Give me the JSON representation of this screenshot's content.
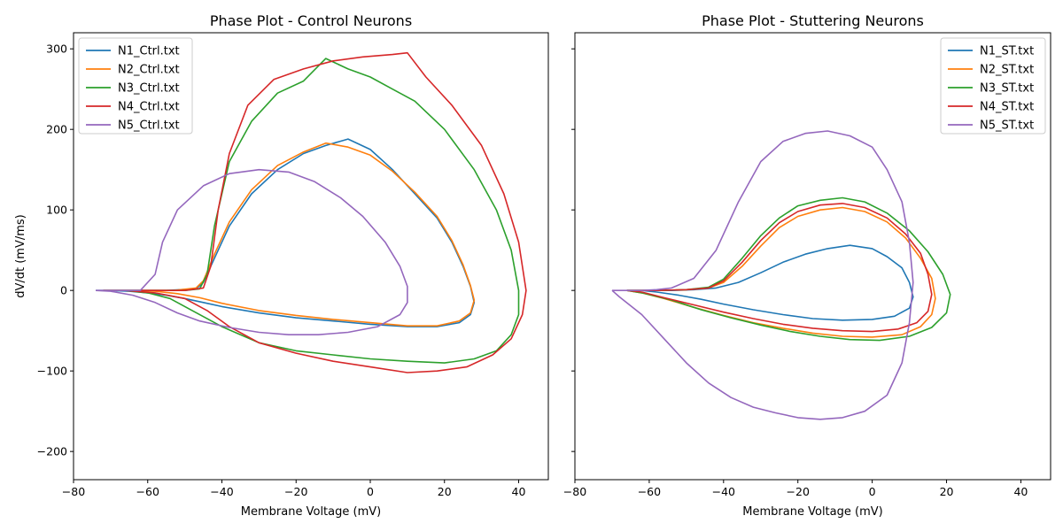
{
  "chart_data": [
    {
      "type": "line",
      "title": "Phase Plot - Control Neurons",
      "xlabel": "Membrane Voltage (mV)",
      "ylabel": "dV/dt (mV/ms)",
      "xlim": [
        -80,
        48
      ],
      "ylim": [
        -235,
        320
      ],
      "xticks": [
        -80,
        -60,
        -40,
        -20,
        0,
        20,
        40
      ],
      "yticks": [
        -200,
        -100,
        0,
        100,
        200,
        300
      ],
      "legend": "top-left",
      "grid": false,
      "series": [
        {
          "name": "N1_Ctrl.txt",
          "color": "#1f77b4",
          "x": [
            -74,
            -65,
            -55,
            -47,
            -45,
            -42,
            -38,
            -32,
            -25,
            -18,
            -12,
            -6,
            0,
            6,
            12,
            18,
            22,
            25,
            27,
            28,
            27,
            24,
            18,
            10,
            0,
            -10,
            -20,
            -30,
            -40,
            -45,
            -50,
            -55,
            -60,
            -65,
            -70,
            -74
          ],
          "y": [
            0,
            0,
            0,
            2,
            10,
            40,
            80,
            120,
            150,
            170,
            180,
            188,
            175,
            150,
            120,
            90,
            60,
            30,
            5,
            -15,
            -30,
            -40,
            -45,
            -45,
            -42,
            -38,
            -34,
            -28,
            -20,
            -15,
            -10,
            -6,
            -3,
            -1,
            0,
            0
          ]
        },
        {
          "name": "N2_Ctrl.txt",
          "color": "#ff7f0e",
          "x": [
            -72,
            -63,
            -53,
            -47,
            -45,
            -42,
            -38,
            -32,
            -25,
            -18,
            -12,
            -6,
            0,
            6,
            12,
            18,
            22,
            25,
            27,
            28,
            27,
            24,
            18,
            10,
            0,
            -10,
            -20,
            -30,
            -40,
            -46,
            -52,
            -58,
            -64,
            -70,
            -72
          ],
          "y": [
            0,
            0,
            0,
            3,
            12,
            45,
            85,
            125,
            155,
            172,
            183,
            178,
            168,
            148,
            122,
            92,
            62,
            32,
            6,
            -12,
            -28,
            -38,
            -44,
            -44,
            -40,
            -36,
            -31,
            -25,
            -16,
            -9,
            -4,
            -1,
            0,
            0,
            0
          ]
        },
        {
          "name": "N3_Ctrl.txt",
          "color": "#2ca02c",
          "x": [
            -72,
            -60,
            -50,
            -46,
            -44,
            -42,
            -38,
            -32,
            -25,
            -18,
            -12,
            -6,
            0,
            6,
            12,
            20,
            28,
            34,
            38,
            40,
            40,
            38,
            34,
            28,
            20,
            10,
            0,
            -10,
            -20,
            -30,
            -40,
            -48,
            -54,
            -60,
            -66,
            -72
          ],
          "y": [
            0,
            0,
            0,
            2,
            20,
            80,
            160,
            210,
            245,
            260,
            288,
            275,
            265,
            250,
            235,
            200,
            150,
            100,
            50,
            0,
            -30,
            -55,
            -75,
            -85,
            -90,
            -88,
            -85,
            -80,
            -75,
            -65,
            -45,
            -25,
            -10,
            -3,
            0,
            0
          ]
        },
        {
          "name": "N4_Ctrl.txt",
          "color": "#d62728",
          "x": [
            -72,
            -60,
            -50,
            -45,
            -43,
            -41,
            -38,
            -33,
            -26,
            -18,
            -10,
            -2,
            6,
            10,
            15,
            22,
            30,
            36,
            40,
            42,
            41,
            38,
            33,
            26,
            18,
            10,
            0,
            -10,
            -20,
            -30,
            -38,
            -44,
            -50,
            -58,
            -66,
            -72
          ],
          "y": [
            0,
            0,
            0,
            3,
            30,
            100,
            170,
            230,
            262,
            275,
            285,
            290,
            293,
            295,
            265,
            230,
            180,
            120,
            60,
            0,
            -30,
            -60,
            -80,
            -95,
            -100,
            -102,
            -95,
            -88,
            -78,
            -65,
            -45,
            -25,
            -10,
            -3,
            0,
            0
          ]
        },
        {
          "name": "N5_Ctrl.txt",
          "color": "#9467bd",
          "x": [
            -74,
            -68,
            -62,
            -58,
            -56,
            -52,
            -45,
            -38,
            -30,
            -22,
            -15,
            -8,
            -2,
            4,
            8,
            10,
            10,
            8,
            2,
            -6,
            -14,
            -22,
            -30,
            -38,
            -46,
            -52,
            -58,
            -64,
            -70,
            -74
          ],
          "y": [
            0,
            0,
            0,
            20,
            60,
            100,
            130,
            145,
            150,
            147,
            135,
            115,
            92,
            60,
            30,
            5,
            -15,
            -30,
            -45,
            -52,
            -55,
            -55,
            -52,
            -46,
            -38,
            -28,
            -15,
            -6,
            -1,
            0
          ]
        }
      ]
    },
    {
      "type": "line",
      "title": "Phase Plot - Stuttering Neurons",
      "xlabel": "Membrane Voltage (mV)",
      "ylabel": "",
      "xlim": [
        -80,
        48
      ],
      "ylim": [
        -235,
        320
      ],
      "xticks": [
        -80,
        -60,
        -40,
        -20,
        0,
        20,
        40
      ],
      "yticks": [
        -200,
        -100,
        0,
        100,
        200,
        300
      ],
      "legend": "top-right",
      "grid": false,
      "series": [
        {
          "name": "N1_ST.txt",
          "color": "#1f77b4",
          "x": [
            -66,
            -60,
            -54,
            -48,
            -42,
            -36,
            -30,
            -24,
            -18,
            -12,
            -6,
            0,
            4,
            8,
            10,
            11,
            10,
            6,
            0,
            -8,
            -16,
            -24,
            -32,
            -40,
            -46,
            -52,
            -58,
            -62,
            -66
          ],
          "y": [
            0,
            0,
            0,
            1,
            3,
            10,
            22,
            35,
            45,
            52,
            56,
            52,
            42,
            28,
            10,
            -8,
            -22,
            -32,
            -36,
            -37,
            -35,
            -30,
            -24,
            -17,
            -11,
            -6,
            -2,
            0,
            0
          ]
        },
        {
          "name": "N2_ST.txt",
          "color": "#ff7f0e",
          "x": [
            -66,
            -58,
            -50,
            -44,
            -40,
            -35,
            -30,
            -25,
            -20,
            -14,
            -8,
            -2,
            4,
            9,
            13,
            16,
            17,
            16,
            13,
            8,
            0,
            -8,
            -16,
            -24,
            -32,
            -40,
            -48,
            -56,
            -62,
            -66
          ],
          "y": [
            0,
            0,
            1,
            3,
            10,
            30,
            55,
            78,
            92,
            100,
            103,
            98,
            85,
            65,
            40,
            15,
            -10,
            -30,
            -45,
            -55,
            -58,
            -57,
            -53,
            -47,
            -40,
            -31,
            -21,
            -10,
            -3,
            0
          ]
        },
        {
          "name": "N3_ST.txt",
          "color": "#2ca02c",
          "x": [
            -66,
            -58,
            -50,
            -44,
            -40,
            -35,
            -30,
            -25,
            -20,
            -14,
            -8,
            -2,
            4,
            10,
            15,
            19,
            21,
            20,
            16,
            10,
            2,
            -6,
            -14,
            -22,
            -30,
            -38,
            -46,
            -54,
            -62,
            -66
          ],
          "y": [
            0,
            0,
            1,
            4,
            14,
            40,
            68,
            90,
            105,
            112,
            115,
            110,
            96,
            74,
            48,
            20,
            -5,
            -28,
            -46,
            -57,
            -62,
            -61,
            -57,
            -51,
            -43,
            -34,
            -24,
            -12,
            -3,
            0
          ]
        },
        {
          "name": "N4_ST.txt",
          "color": "#d62728",
          "x": [
            -66,
            -58,
            -50,
            -44,
            -40,
            -35,
            -30,
            -25,
            -20,
            -14,
            -8,
            -2,
            4,
            9,
            13,
            15,
            16,
            15,
            12,
            7,
            0,
            -8,
            -16,
            -24,
            -32,
            -40,
            -48,
            -56,
            -62,
            -66
          ],
          "y": [
            0,
            0,
            1,
            3,
            12,
            35,
            62,
            84,
            98,
            106,
            108,
            103,
            90,
            70,
            46,
            20,
            -5,
            -26,
            -40,
            -48,
            -51,
            -50,
            -47,
            -42,
            -35,
            -27,
            -18,
            -9,
            -2,
            0
          ]
        },
        {
          "name": "N5_ST.txt",
          "color": "#9467bd",
          "x": [
            -70,
            -66,
            -62,
            -58,
            -54,
            -48,
            -42,
            -36,
            -30,
            -24,
            -18,
            -12,
            -6,
            0,
            4,
            8,
            10,
            11,
            10,
            8,
            4,
            -2,
            -8,
            -14,
            -20,
            -26,
            -32,
            -38,
            -44,
            -50,
            -56,
            -62,
            -68,
            -70
          ],
          "y": [
            0,
            0,
            0,
            1,
            3,
            15,
            50,
            110,
            160,
            185,
            195,
            198,
            192,
            178,
            150,
            110,
            60,
            10,
            -40,
            -90,
            -130,
            -150,
            -158,
            -160,
            -158,
            -152,
            -145,
            -133,
            -115,
            -90,
            -60,
            -30,
            -8,
            0
          ]
        }
      ]
    }
  ]
}
